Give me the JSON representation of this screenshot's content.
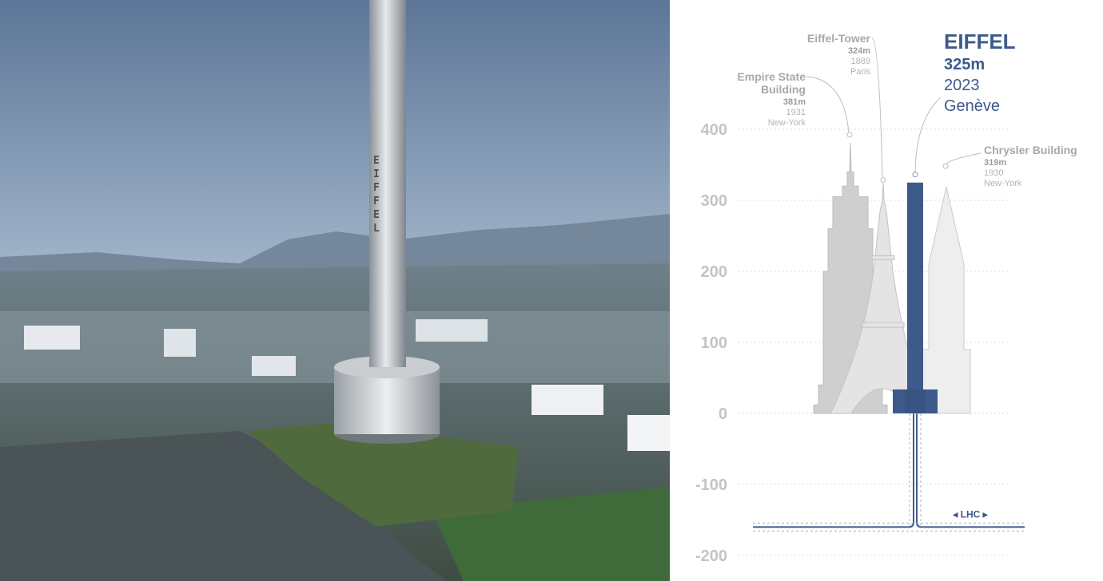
{
  "photo": {
    "tower_lettering": "EIFFEL"
  },
  "colors": {
    "eiffel": "#3d5a8a",
    "empire": "#cfcfcf",
    "eiffel_tower": "#e4e4e4",
    "chrysler": "#eeeeee",
    "axis_text": "#c4c4c4"
  },
  "chart_data": {
    "type": "bar",
    "title": "",
    "xlabel": "",
    "ylabel": "",
    "ylim": [
      -200,
      400
    ],
    "yticks": [
      "400",
      "300",
      "200",
      "100",
      "0",
      "-100",
      "-200"
    ],
    "yticks_values": [
      400,
      300,
      200,
      100,
      0,
      -100,
      -200
    ],
    "grid": true,
    "buildings": [
      {
        "key": "empire",
        "name": "Empire State Building",
        "name_lines": [
          "Empire State",
          "Building"
        ],
        "height_label": "381m",
        "height": 381,
        "year": "1931",
        "city": "New-York",
        "color": "#cfcfcf"
      },
      {
        "key": "eiffel_tower",
        "name": "Eiffel-Tower",
        "name_lines": [
          "Eiffel-Tower"
        ],
        "height_label": "324m",
        "height": 324,
        "year": "1889",
        "city": "Paris",
        "color": "#e4e4e4"
      },
      {
        "key": "eiffel",
        "name": "EIFFEL",
        "name_lines": [
          "EIFFEL"
        ],
        "height_label": "325m",
        "height": 325,
        "year": "2023",
        "city": "Genève",
        "color": "#3d5a8a"
      },
      {
        "key": "chrysler",
        "name": "Chrysler Building",
        "name_lines": [
          "Chrysler Building"
        ],
        "height_label": "319m",
        "height": 319,
        "year": "1930",
        "city": "New-York",
        "color": "#eeeeee"
      }
    ],
    "underground": {
      "label": "LHC",
      "arrow_left": "◂",
      "arrow_right": "▸",
      "depth": -160
    }
  }
}
